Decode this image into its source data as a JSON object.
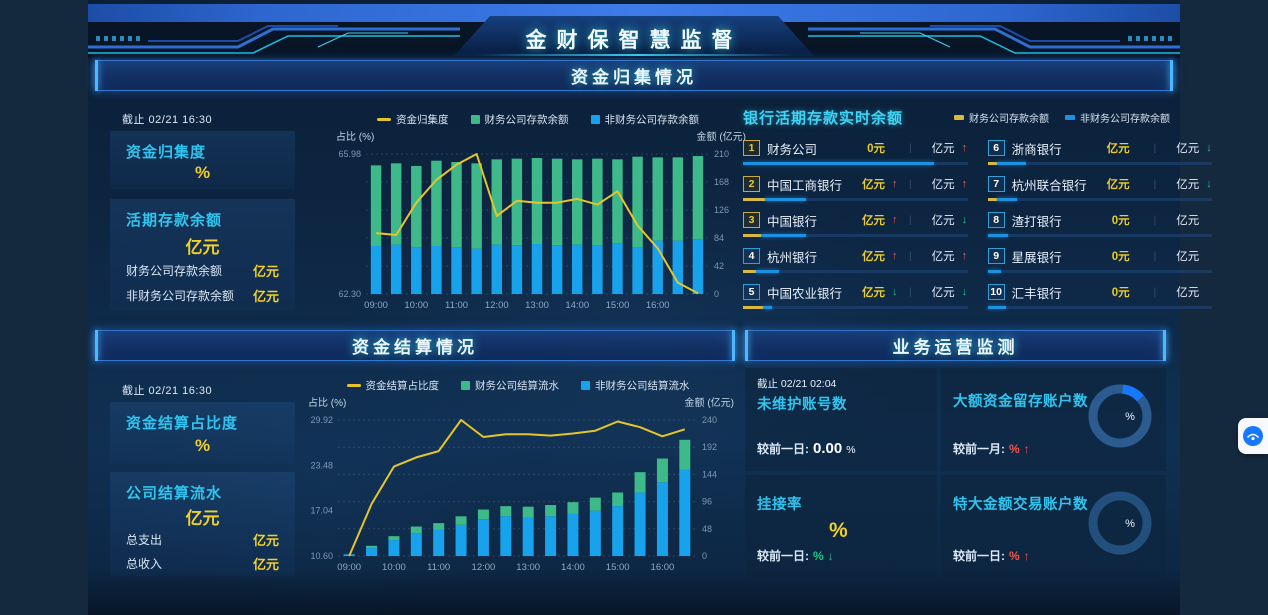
{
  "header": {
    "title": "金财保智慧监督"
  },
  "sections": {
    "s1": "资金归集情况",
    "s2": "资金结算情况",
    "s3": "业务运营监测"
  },
  "colors": {
    "accent_cyan": "#2fc4ee",
    "accent_yellow": "#f2cf2a",
    "bar_green": "#3eb98a",
    "bar_blue": "#18a2ec",
    "line_yellow": "#e6c52b",
    "up_red": "#f4564a",
    "down_green": "#1fc787"
  },
  "fund_collection": {
    "asof": "截止 02/21 16:30",
    "stat1_label": "资金归集度",
    "stat1_value": "%",
    "stat2_label": "活期存款余额",
    "stat2_value": "亿元",
    "row1_label": "财务公司存款余额",
    "row1_value": "亿元",
    "row2_label": "非财务公司存款余额",
    "row2_value": "亿元"
  },
  "bank_panel": {
    "title": "银行活期存款实时余额",
    "legend": [
      {
        "label": "财务公司存款余额",
        "color": "#d9b93c"
      },
      {
        "label": "非财务公司存款余额",
        "color": "#1e90e0"
      }
    ],
    "banks": [
      {
        "rank": "1",
        "name": "财务公司",
        "v1": "0元",
        "a1": "",
        "v2": "亿元",
        "a2": "up",
        "gold": true,
        "yellow_pct": 0,
        "blue_pct": 85
      },
      {
        "rank": "2",
        "name": "中国工商银行",
        "v1": "亿元",
        "a1": "up",
        "v2": "亿元",
        "a2": "up",
        "gold": true,
        "yellow_pct": 10,
        "blue_pct": 18
      },
      {
        "rank": "3",
        "name": "中国银行",
        "v1": "亿元",
        "a1": "up",
        "v2": "亿元",
        "a2": "down",
        "gold": true,
        "yellow_pct": 8,
        "blue_pct": 20
      },
      {
        "rank": "4",
        "name": "杭州银行",
        "v1": "亿元",
        "a1": "up",
        "v2": "亿元",
        "a2": "up",
        "gold": false,
        "yellow_pct": 6,
        "blue_pct": 10
      },
      {
        "rank": "5",
        "name": "中国农业银行",
        "v1": "亿元",
        "a1": "down",
        "v2": "亿元",
        "a2": "down",
        "gold": false,
        "yellow_pct": 9,
        "blue_pct": 4
      },
      {
        "rank": "6",
        "name": "浙商银行",
        "v1": "亿元",
        "a1": "",
        "v2": "亿元",
        "a2": "down",
        "gold": false,
        "yellow_pct": 4,
        "blue_pct": 13
      },
      {
        "rank": "7",
        "name": "杭州联合银行",
        "v1": "亿元",
        "a1": "",
        "v2": "亿元",
        "a2": "down",
        "gold": false,
        "yellow_pct": 4,
        "blue_pct": 9
      },
      {
        "rank": "8",
        "name": "渣打银行",
        "v1": "0元",
        "a1": "",
        "v2": "亿元",
        "a2": "",
        "gold": false,
        "yellow_pct": 0,
        "blue_pct": 9
      },
      {
        "rank": "9",
        "name": "星展银行",
        "v1": "0元",
        "a1": "",
        "v2": "亿元",
        "a2": "",
        "gold": false,
        "yellow_pct": 0,
        "blue_pct": 6
      },
      {
        "rank": "10",
        "name": "汇丰银行",
        "v1": "0元",
        "a1": "",
        "v2": "亿元",
        "a2": "",
        "gold": false,
        "yellow_pct": 0,
        "blue_pct": 8
      }
    ]
  },
  "settlement": {
    "asof": "截止 02/21 16:30",
    "stat1_label": "资金结算占比度",
    "stat1_value": "%",
    "stat2_label": "公司结算流水",
    "stat2_value": "亿元",
    "row1_label": "总支出",
    "row1_value": "亿元",
    "row2_label": "总收入",
    "row2_value": "亿元"
  },
  "operations": {
    "asof": "截止 02/21 02:04",
    "q1": {
      "title": "未维护账号数",
      "compare_label": "较前一日:",
      "value": "0.00",
      "unit": "%"
    },
    "q2": {
      "title": "大额资金留存账户数",
      "compare_label": "较前一月:",
      "value": "%",
      "arrow": "up",
      "gauge_label": "%",
      "gauge_pct": 12
    },
    "q3": {
      "title": "挂接率",
      "big_value": "%",
      "compare_label": "较前一日:",
      "value": "%",
      "arrow": "down"
    },
    "q4": {
      "title": "特大金额交易账户数",
      "compare_label": "较前一日:",
      "value": "%",
      "arrow": "up",
      "gauge_label": "%",
      "gauge_pct": 0
    }
  },
  "chart_data": [
    {
      "type": "bar",
      "stacked": true,
      "categories": [
        "09:00",
        "09:30",
        "10:00",
        "10:30",
        "11:00",
        "11:30",
        "12:00",
        "12:30",
        "13:00",
        "13:30",
        "14:00",
        "14:30",
        "15:00",
        "15:30",
        "16:00",
        "16:30",
        "17:00"
      ],
      "series": [
        {
          "name": "非财务公司存款余额",
          "color": "#18a2ec",
          "values": [
            72,
            74,
            70,
            72,
            70,
            68,
            74,
            73,
            75,
            73,
            74,
            73,
            76,
            70,
            80,
            80,
            82
          ]
        },
        {
          "name": "财务公司存款余额",
          "color": "#3eb98a",
          "values": [
            121,
            122,
            122,
            128,
            128,
            128,
            128,
            130,
            129,
            130,
            128,
            130,
            126,
            136,
            125,
            125,
            125
          ]
        }
      ],
      "line_series": {
        "name": "资金归集度",
        "color": "#e6c52b",
        "axis": "left",
        "values": [
          63.9,
          63.85,
          64.7,
          65.3,
          65.7,
          65.98,
          64.35,
          64.75,
          64.7,
          64.7,
          64.8,
          64.65,
          65.0,
          64.1,
          63.5,
          62.6,
          62.32
        ]
      },
      "left_axis": {
        "label": "占比 (%)",
        "ticks": [
          65.98,
          62.3
        ],
        "min": 62.3,
        "max": 65.98
      },
      "right_axis": {
        "label": "金额 (亿元)",
        "ticks": [
          210,
          168,
          126,
          84,
          42,
          0
        ]
      },
      "x_tick_labels": [
        "09:00",
        "10:00",
        "11:00",
        "12:00",
        "13:00",
        "14:00",
        "15:00",
        "16:00"
      ],
      "x_tick_indices": [
        0,
        2,
        4,
        6,
        8,
        10,
        12,
        14
      ],
      "legend_position": "top",
      "grid": true
    },
    {
      "type": "bar",
      "stacked": true,
      "categories": [
        "09:00",
        "09:30",
        "10:00",
        "10:30",
        "11:00",
        "11:30",
        "12:00",
        "12:30",
        "13:00",
        "13:30",
        "14:00",
        "14:30",
        "15:00",
        "15:30",
        "16:00",
        "16:30"
      ],
      "series": [
        {
          "name": "非财务公司结算流水",
          "color": "#18a2ec",
          "values": [
            3,
            14,
            28,
            40,
            46,
            55,
            65,
            70,
            68,
            70,
            75,
            80,
            88,
            112,
            130,
            152
          ]
        },
        {
          "name": "财务公司结算流水",
          "color": "#3eb98a",
          "values": [
            0,
            4,
            7,
            12,
            12,
            15,
            17,
            18,
            19,
            20,
            20,
            23,
            24,
            36,
            42,
            53
          ]
        }
      ],
      "line_series": {
        "name": "资金结算占比度",
        "color": "#e6c52b",
        "axis": "left",
        "values": [
          10.6,
          18.0,
          23.3,
          24.6,
          25.5,
          29.92,
          27.5,
          27.9,
          27.9,
          27.7,
          28.0,
          28.4,
          29.7,
          28.9,
          27.6,
          28.6
        ]
      },
      "left_axis": {
        "label": "占比 (%)",
        "ticks": [
          29.92,
          23.48,
          17.04,
          10.6
        ],
        "min": 10.6,
        "max": 29.92
      },
      "right_axis": {
        "label": "金额 (亿元)",
        "ticks": [
          240,
          192,
          144,
          96,
          48,
          0
        ]
      },
      "x_tick_labels": [
        "09:00",
        "10:00",
        "11:00",
        "12:00",
        "13:00",
        "14:00",
        "15:00",
        "16:00"
      ],
      "x_tick_indices": [
        0,
        2,
        4,
        6,
        8,
        10,
        12,
        14
      ],
      "legend_position": "top",
      "grid": true
    }
  ]
}
